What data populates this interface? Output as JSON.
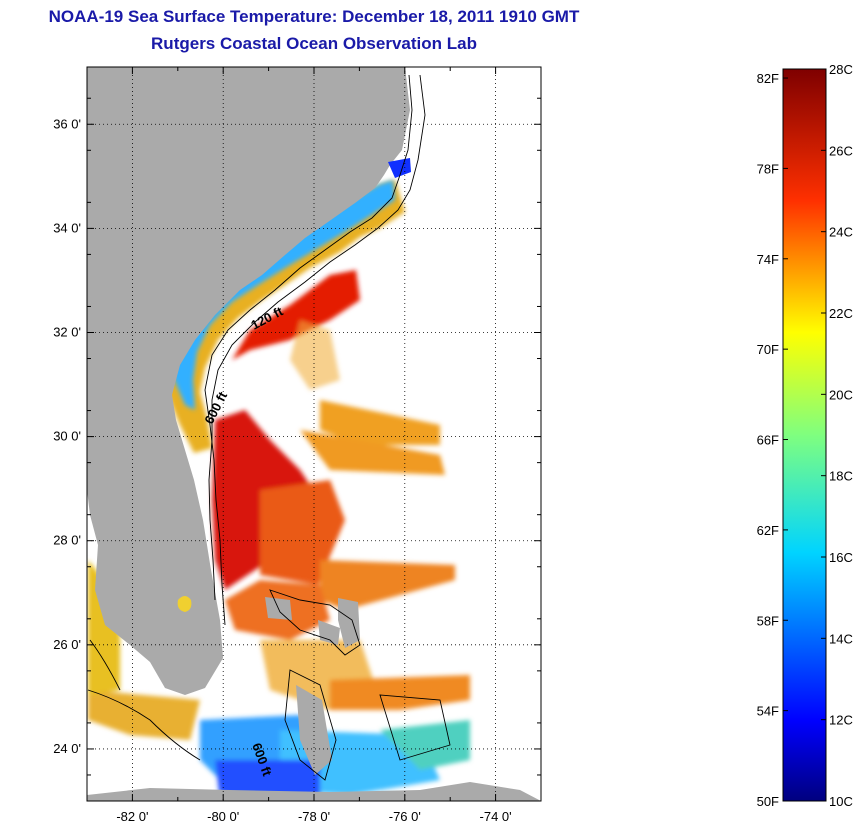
{
  "title": "NOAA-19 Sea Surface Temperature:  December 18, 2011 1910 GMT",
  "subtitle": "Rutgers Coastal Ocean Observation Lab",
  "map": {
    "lat_labels": [
      "36 0'",
      "34 0'",
      "32 0'",
      "30 0'",
      "28 0'",
      "26 0'",
      "24 0'"
    ],
    "lat_values": [
      36,
      34,
      32,
      30,
      28,
      26,
      24
    ],
    "lon_labels": [
      "-82 0'",
      "-80 0'",
      "-78 0'",
      "-76 0'",
      "-74 0'"
    ],
    "lon_values": [
      -82,
      -80,
      -78,
      -76,
      -74
    ],
    "lat_range": [
      23,
      37.1
    ],
    "lon_range": [
      -83,
      -73
    ],
    "isobath_labels": [
      "120 ft",
      "600 ft",
      "600 ft"
    ],
    "colors": {
      "land": "#aaaaaa",
      "ocean_missing": "#ffffff",
      "frame": "#000000"
    }
  },
  "colorbar": {
    "celsius_labels": [
      "28C",
      "26C",
      "24C",
      "22C",
      "20C",
      "18C",
      "16C",
      "14C",
      "12C",
      "10C"
    ],
    "celsius_values": [
      28,
      26,
      24,
      22,
      20,
      18,
      16,
      14,
      12,
      10
    ],
    "fahrenheit_labels": [
      "82F",
      "78F",
      "74F",
      "70F",
      "66F",
      "62F",
      "58F",
      "54F",
      "50F"
    ],
    "fahrenheit_values": [
      82,
      78,
      74,
      70,
      66,
      62,
      58,
      54,
      50
    ],
    "range_c": [
      10,
      28
    ],
    "colormap": "jet"
  }
}
